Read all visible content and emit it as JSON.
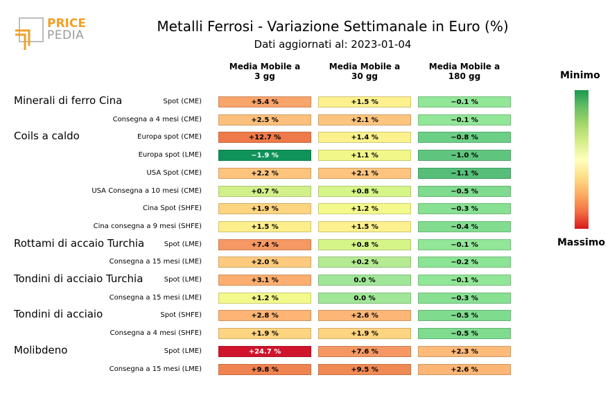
{
  "logo": {
    "word1": "PRICE",
    "word2": "PEDIA"
  },
  "title": "Metalli Ferrosi - Variazione Settimanale in Euro (%)",
  "subtitle": "Dati aggiornati al: 2023-01-04",
  "colorbar": {
    "top_label": "Minimo",
    "bottom_label": "Massimo"
  },
  "chart_data": {
    "type": "table",
    "columns": [
      {
        "line1": "Media Mobile a",
        "line2": "3 gg"
      },
      {
        "line1": "Media Mobile a",
        "line2": "30 gg"
      },
      {
        "line1": "Media Mobile a",
        "line2": "180 gg"
      }
    ],
    "groups": [
      "Minerali di ferro Cina",
      "Coils a caldo",
      "Rottami di accaio Turchia",
      "Tondini di acciaio Turchia",
      "Tondini di acciaio",
      "Molibdeno"
    ],
    "rows": [
      {
        "group": "Minerali di ferro Cina",
        "label": "Spot (CME)",
        "values": [
          "+5.4 %",
          "+1.5 %",
          "−0.1 %"
        ],
        "colors": [
          "#f9a46b",
          "#fdf08e",
          "#91e697"
        ],
        "text_colors": [
          "#000",
          "#000",
          "#000"
        ]
      },
      {
        "group": "",
        "label": "Consegna a 4 mesi (CME)",
        "values": [
          "+2.5 %",
          "+2.1 %",
          "−0.1 %"
        ],
        "colors": [
          "#fdc07c",
          "#fdc47f",
          "#91e697"
        ],
        "text_colors": [
          "#000",
          "#000",
          "#000"
        ]
      },
      {
        "group": "Coils a caldo",
        "label": "Europa spot (CME)",
        "values": [
          "+12.7 %",
          "+1.4 %",
          "−0.8 %"
        ],
        "colors": [
          "#ee7a4a",
          "#fbf28d",
          "#6ccf86"
        ],
        "text_colors": [
          "#000",
          "#000",
          "#000"
        ]
      },
      {
        "group": "",
        "label": "Europa spot (LME)",
        "values": [
          "−1.9 %",
          "+1.1 %",
          "−1.0 %"
        ],
        "colors": [
          "#10935a",
          "#f2f78a",
          "#5fc57e"
        ],
        "text_colors": [
          "#fff",
          "#000",
          "#000"
        ]
      },
      {
        "group": "",
        "label": "USA Spot (CME)",
        "values": [
          "+2.2 %",
          "+2.1 %",
          "−1.1 %"
        ],
        "colors": [
          "#fdc47e",
          "#fdc47f",
          "#56be79"
        ],
        "text_colors": [
          "#000",
          "#000",
          "#000"
        ]
      },
      {
        "group": "",
        "label": "USA Consegna a 10 mesi (CME)",
        "values": [
          "+0.7 %",
          "+0.8 %",
          "−0.5 %"
        ],
        "colors": [
          "#d2f08a",
          "#d6f589",
          "#7fdb8e"
        ],
        "text_colors": [
          "#000",
          "#000",
          "#000"
        ]
      },
      {
        "group": "",
        "label": "Cina Spot (SHFE)",
        "values": [
          "+1.9 %",
          "+1.2 %",
          "−0.3 %"
        ],
        "colors": [
          "#fdd480",
          "#f4f98c",
          "#88e093"
        ],
        "text_colors": [
          "#000",
          "#000",
          "#000"
        ]
      },
      {
        "group": "",
        "label": "Cina consegna a 9 mesi (SHFE)",
        "values": [
          "+1.5 %",
          "+1.5 %",
          "−0.4 %"
        ],
        "colors": [
          "#fdee8c",
          "#fdf08e",
          "#82dc90"
        ],
        "text_colors": [
          "#000",
          "#000",
          "#000"
        ]
      },
      {
        "group": "Rottami di accaio Turchia",
        "label": "Spot (LME)",
        "values": [
          "+7.4 %",
          "+0.8 %",
          "−0.1 %"
        ],
        "colors": [
          "#f59864",
          "#d6f589",
          "#91e697"
        ],
        "text_colors": [
          "#000",
          "#000",
          "#000"
        ]
      },
      {
        "group": "",
        "label": "Consegna a 15 mesi (LME)",
        "values": [
          "+2.0 %",
          "+0.2 %",
          "−0.2 %"
        ],
        "colors": [
          "#fdca7e",
          "#b5eb93",
          "#8ce495"
        ],
        "text_colors": [
          "#000",
          "#000",
          "#000"
        ]
      },
      {
        "group": "Tondini di acciaio Turchia",
        "label": "Spot (LME)",
        "values": [
          "+3.1 %",
          "0.0 %",
          "−0.1 %"
        ],
        "colors": [
          "#fcae70",
          "#a0e698",
          "#91e697"
        ],
        "text_colors": [
          "#000",
          "#000",
          "#000"
        ]
      },
      {
        "group": "",
        "label": "Consegna a 15 mesi (LME)",
        "values": [
          "+1.2 %",
          "0.0 %",
          "−0.3 %"
        ],
        "colors": [
          "#f4f98c",
          "#a0e698",
          "#88e093"
        ],
        "text_colors": [
          "#000",
          "#000",
          "#000"
        ]
      },
      {
        "group": "Tondini di acciaio",
        "label": "Spot (SHFE)",
        "values": [
          "+2.8 %",
          "+2.6 %",
          "−0.5 %"
        ],
        "colors": [
          "#fdb474",
          "#fdb676",
          "#7fdb8e"
        ],
        "text_colors": [
          "#000",
          "#000",
          "#000"
        ]
      },
      {
        "group": "",
        "label": "Consegna a 4 mesi (SHFE)",
        "values": [
          "+1.9 %",
          "+1.9 %",
          "−0.5 %"
        ],
        "colors": [
          "#fdd480",
          "#fdd480",
          "#7fdb8e"
        ],
        "text_colors": [
          "#000",
          "#000",
          "#000"
        ]
      },
      {
        "group": "Molibdeno",
        "label": "Spot (LME)",
        "values": [
          "+24.7 %",
          "+7.6 %",
          "+2.3 %"
        ],
        "colors": [
          "#d0142c",
          "#f59864",
          "#fdba79"
        ],
        "text_colors": [
          "#fff",
          "#000",
          "#000"
        ]
      },
      {
        "group": "",
        "label": "Consegna a 15 mesi (LME)",
        "values": [
          "+9.8 %",
          "+9.5 %",
          "+2.6 %"
        ],
        "colors": [
          "#f08451",
          "#f08a55",
          "#fdb676"
        ],
        "text_colors": [
          "#000",
          "#000",
          "#000"
        ]
      }
    ]
  }
}
